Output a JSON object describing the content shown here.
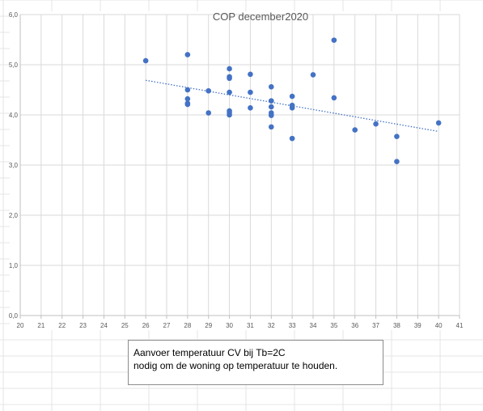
{
  "chart_data": {
    "type": "scatter",
    "title": "COP december2020",
    "xlabel": "",
    "ylabel": "",
    "xlim": [
      20,
      41
    ],
    "ylim": [
      0,
      6
    ],
    "x_ticks": [
      "20",
      "21",
      "22",
      "23",
      "24",
      "25",
      "26",
      "27",
      "28",
      "29",
      "30",
      "31",
      "32",
      "33",
      "34",
      "35",
      "36",
      "37",
      "38",
      "39",
      "40",
      "41"
    ],
    "y_ticks": [
      "0,0",
      "1,0",
      "2,0",
      "3,0",
      "4,0",
      "5,0",
      "6,0"
    ],
    "grid": true,
    "legend": "none",
    "marker_color": "#4472c4",
    "trendline": {
      "type": "linear",
      "style": "dotted",
      "x": [
        26,
        40
      ],
      "y": [
        4.69,
        3.67
      ]
    },
    "points": [
      {
        "x": 26,
        "y": 5.08
      },
      {
        "x": 28,
        "y": 5.2
      },
      {
        "x": 28,
        "y": 4.5
      },
      {
        "x": 28,
        "y": 4.32
      },
      {
        "x": 28,
        "y": 4.23
      },
      {
        "x": 28,
        "y": 4.21
      },
      {
        "x": 29,
        "y": 4.48
      },
      {
        "x": 29,
        "y": 4.04
      },
      {
        "x": 30,
        "y": 4.92
      },
      {
        "x": 30,
        "y": 4.76
      },
      {
        "x": 30,
        "y": 4.73
      },
      {
        "x": 30,
        "y": 4.45
      },
      {
        "x": 30,
        "y": 4.08
      },
      {
        "x": 30,
        "y": 4.04
      },
      {
        "x": 30,
        "y": 4.0
      },
      {
        "x": 31,
        "y": 4.81
      },
      {
        "x": 31,
        "y": 4.45
      },
      {
        "x": 31,
        "y": 4.14
      },
      {
        "x": 32,
        "y": 4.56
      },
      {
        "x": 32,
        "y": 4.28
      },
      {
        "x": 32,
        "y": 4.16
      },
      {
        "x": 32,
        "y": 4.04
      },
      {
        "x": 32,
        "y": 3.99
      },
      {
        "x": 32,
        "y": 3.76
      },
      {
        "x": 33,
        "y": 4.37
      },
      {
        "x": 33,
        "y": 4.19
      },
      {
        "x": 33,
        "y": 4.14
      },
      {
        "x": 33,
        "y": 3.53
      },
      {
        "x": 34,
        "y": 4.8
      },
      {
        "x": 35,
        "y": 5.49
      },
      {
        "x": 35,
        "y": 4.34
      },
      {
        "x": 36,
        "y": 3.7
      },
      {
        "x": 37,
        "y": 3.82
      },
      {
        "x": 38,
        "y": 3.57
      },
      {
        "x": 38,
        "y": 3.07
      },
      {
        "x": 40,
        "y": 3.84
      }
    ]
  },
  "caption": {
    "line1": "Aanvoer temperatuur CV bij Tb=2C",
    "line2": "nodig om de woning op temperatuur te houden."
  }
}
